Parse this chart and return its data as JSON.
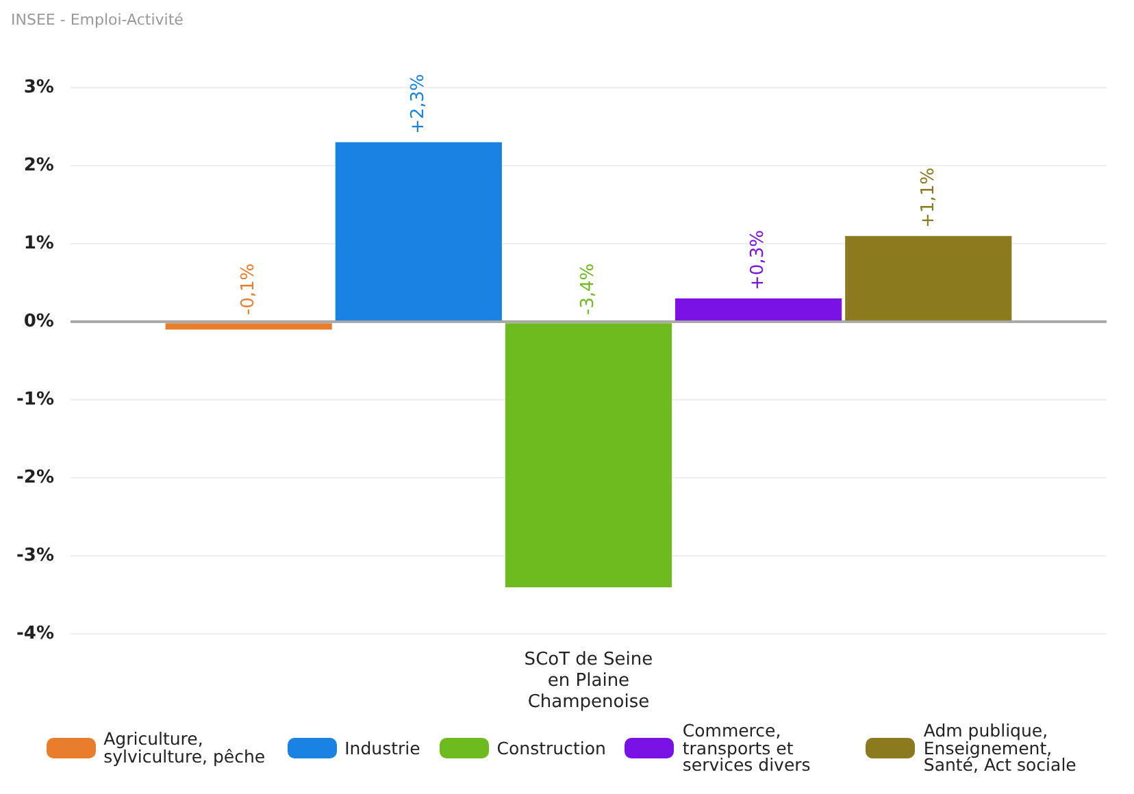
{
  "chart_data": {
    "type": "bar",
    "subtitle": "INSEE - Emploi-Activité",
    "categories": [
      "SCoT de Seine en Plaine Champenoise"
    ],
    "series": [
      {
        "name": "Agriculture, sylviculture, pêche",
        "color": "#e87d2b",
        "values": [
          -0.1
        ],
        "value_labels": [
          "-0,1%"
        ]
      },
      {
        "name": "Industrie",
        "color": "#1a82e2",
        "values": [
          2.3
        ],
        "value_labels": [
          "+2,3%"
        ]
      },
      {
        "name": "Construction",
        "color": "#6dbb1e",
        "values": [
          -3.4
        ],
        "value_labels": [
          "-3,4%"
        ]
      },
      {
        "name": "Commerce, transports et services divers",
        "color": "#7a12e6",
        "values": [
          0.3
        ],
        "value_labels": [
          "+0,3%"
        ]
      },
      {
        "name": "Adm publique, Enseignement, Santé, Act sociale",
        "color": "#8b7a1e",
        "values": [
          1.1
        ],
        "value_labels": [
          "+1,1%"
        ]
      }
    ],
    "ylim": [
      -4,
      3
    ],
    "yticks": [
      {
        "value": 3,
        "label": "3%"
      },
      {
        "value": 2,
        "label": "2%"
      },
      {
        "value": 1,
        "label": "1%"
      },
      {
        "value": 0,
        "label": "0%"
      },
      {
        "value": -1,
        "label": "-1%"
      },
      {
        "value": -2,
        "label": "-2%"
      },
      {
        "value": -3,
        "label": "-3%"
      },
      {
        "value": -4,
        "label": "-4%"
      }
    ],
    "grid": "y",
    "legend": "bottom"
  }
}
